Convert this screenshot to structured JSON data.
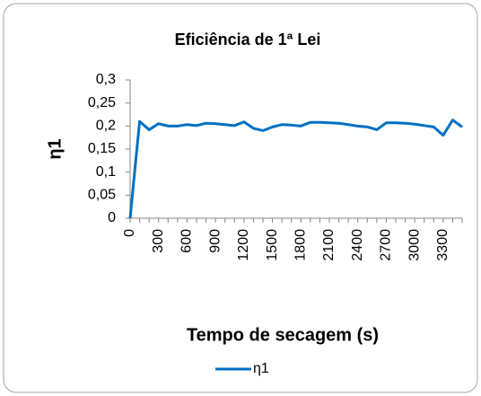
{
  "chart_data": {
    "type": "line",
    "title": "Eficiência de 1ª Lei",
    "x_label": "Tempo de secagem (s)",
    "y_label": "η1",
    "categories": [
      "0",
      null,
      null,
      "300",
      null,
      null,
      "600",
      null,
      null,
      "900",
      null,
      null,
      "1200",
      null,
      null,
      "1500",
      null,
      null,
      "1800",
      null,
      null,
      "2100",
      null,
      null,
      "2400",
      null,
      null,
      "2700",
      null,
      null,
      "3000",
      null,
      null,
      "3300",
      null,
      null
    ],
    "series": [
      {
        "name": "η1",
        "color": "#0070c0",
        "values": [
          0,
          0.21,
          0.192,
          0.205,
          0.2,
          0.2,
          0.203,
          0.201,
          0.206,
          0.205,
          0.203,
          0.201,
          0.209,
          0.195,
          0.19,
          0.198,
          0.203,
          0.202,
          0.2,
          0.208,
          0.208,
          0.207,
          0.206,
          0.203,
          0.2,
          0.198,
          0.192,
          0.207,
          0.207,
          0.206,
          0.204,
          0.201,
          0.198,
          0.18,
          0.213,
          0.198
        ]
      }
    ],
    "ylim": [
      0,
      0.3
    ],
    "yticks": [
      0,
      {
        "value": 0.05,
        "label": "0,05"
      },
      {
        "value": 0.1,
        "label": "0,1"
      },
      {
        "value": 0.15,
        "label": "0,15"
      },
      {
        "value": 0.2,
        "label": "0,2"
      },
      {
        "value": 0.25,
        "label": "0,25"
      },
      {
        "value": 0.3,
        "label": "0,3"
      }
    ],
    "grid": false,
    "legend": "bottom"
  }
}
